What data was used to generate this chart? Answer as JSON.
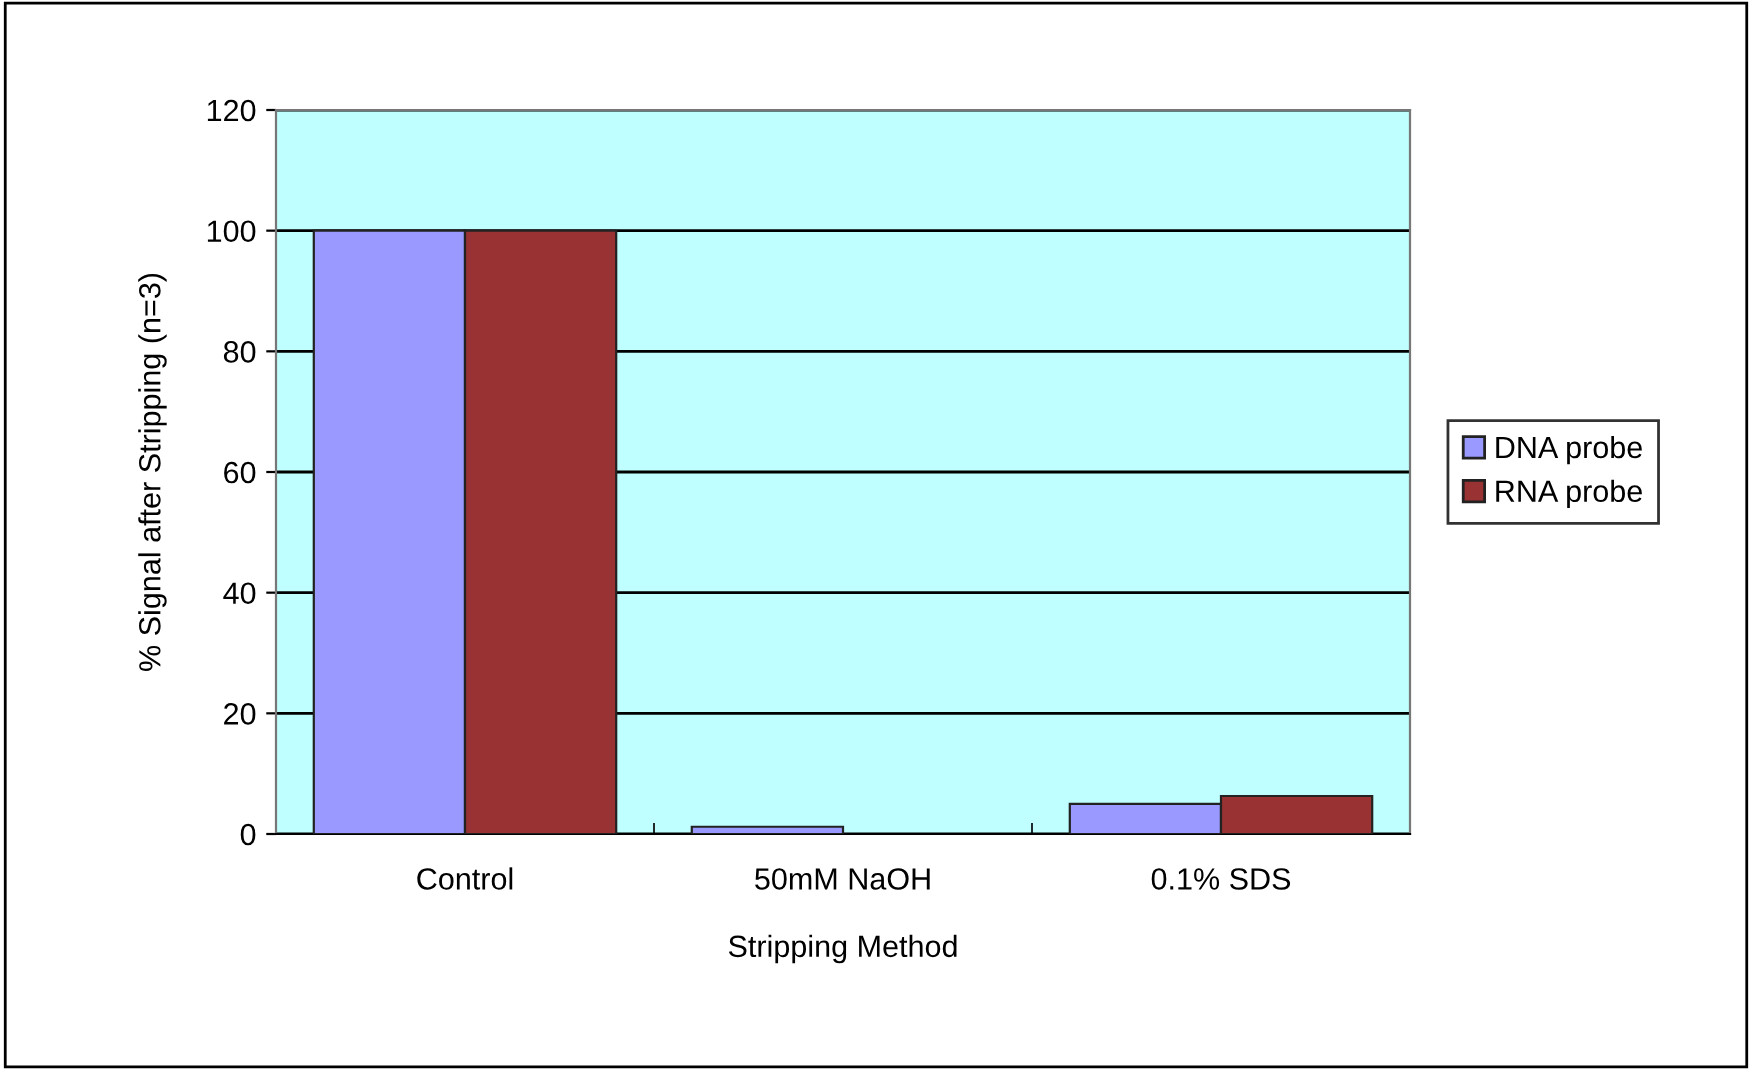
{
  "chart_data": {
    "type": "bar",
    "xlabel": "Stripping Method",
    "ylabel": "% Signal after Stripping (n=3)",
    "categories": [
      "Control",
      "50mM NaOH",
      "0.1% SDS"
    ],
    "series": [
      {
        "name": "DNA probe",
        "color": "#9999ff",
        "values": [
          100,
          1.2,
          5
        ]
      },
      {
        "name": "RNA probe",
        "color": "#993333",
        "values": [
          100,
          0,
          6.3
        ]
      }
    ],
    "ylim": [
      0,
      120
    ],
    "yticks": [
      0,
      20,
      40,
      60,
      80,
      100,
      120
    ],
    "grid": "y",
    "legend": "right"
  }
}
